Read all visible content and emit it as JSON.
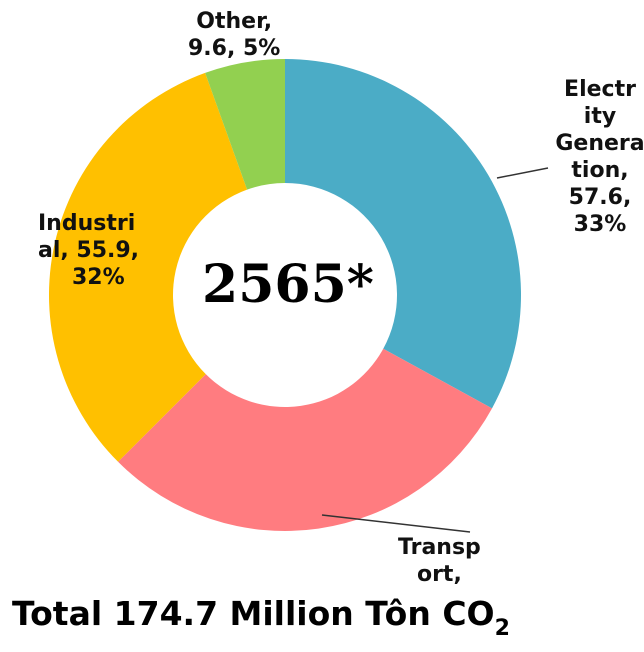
{
  "chart_data": {
    "type": "pie",
    "variant": "donut",
    "center_label": "2565*",
    "total_label": "Total 174.7 Million Tôn CO",
    "total_subscript": "2",
    "slices": [
      {
        "label": "Electricity Generation",
        "value": 57.6,
        "percent": 33,
        "color": "#4bacc6"
      },
      {
        "label": "Transport",
        "value": 51.6,
        "percent": 30,
        "color": "#ff7c80"
      },
      {
        "label": "Industrial",
        "value": 55.9,
        "percent": 32,
        "color": "#ffc000"
      },
      {
        "label": "Other",
        "value": 9.6,
        "percent": 5,
        "color": "#92d050"
      }
    ],
    "data_labels": {
      "other_l1": "Other,",
      "other_l2": "9.6, 5%",
      "elec_l1": "Electr",
      "elec_l2": "ity",
      "elec_l3": "Genera",
      "elec_l4": "tion,",
      "elec_l5": "57.6,",
      "elec_l6": "33%",
      "ind_l1": "Industri",
      "ind_l2": "al, 55.9,",
      "ind_l3": "32%",
      "trans_l1": "Transp",
      "trans_l2": "ort,"
    }
  }
}
